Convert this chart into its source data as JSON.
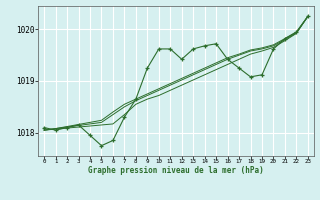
{
  "x": [
    0,
    1,
    2,
    3,
    4,
    5,
    6,
    7,
    8,
    9,
    10,
    11,
    12,
    13,
    14,
    15,
    16,
    17,
    18,
    19,
    20,
    21,
    22,
    23
  ],
  "y_main": [
    1018.1,
    1018.05,
    1018.1,
    1018.15,
    1017.95,
    1017.75,
    1017.85,
    1018.3,
    1018.65,
    1019.25,
    1019.62,
    1019.62,
    1019.42,
    1019.62,
    1019.68,
    1019.72,
    1019.42,
    1019.25,
    1019.08,
    1019.12,
    1019.62,
    1019.82,
    1019.95,
    1020.25
  ],
  "y_trend1": [
    1018.05,
    1018.07,
    1018.09,
    1018.11,
    1018.13,
    1018.15,
    1018.17,
    1018.35,
    1018.55,
    1018.65,
    1018.72,
    1018.82,
    1018.92,
    1019.02,
    1019.12,
    1019.22,
    1019.32,
    1019.42,
    1019.52,
    1019.58,
    1019.65,
    1019.78,
    1019.92,
    1020.25
  ],
  "y_trend2": [
    1018.05,
    1018.08,
    1018.11,
    1018.14,
    1018.17,
    1018.2,
    1018.35,
    1018.5,
    1018.62,
    1018.72,
    1018.82,
    1018.92,
    1019.02,
    1019.12,
    1019.22,
    1019.32,
    1019.42,
    1019.5,
    1019.58,
    1019.62,
    1019.68,
    1019.8,
    1019.93,
    1020.25
  ],
  "y_trend3": [
    1018.05,
    1018.08,
    1018.12,
    1018.16,
    1018.2,
    1018.24,
    1018.4,
    1018.55,
    1018.65,
    1018.75,
    1018.85,
    1018.95,
    1019.05,
    1019.15,
    1019.25,
    1019.35,
    1019.45,
    1019.52,
    1019.6,
    1019.64,
    1019.7,
    1019.82,
    1019.94,
    1020.25
  ],
  "line_color": "#2d6e2d",
  "bg_color": "#d6f0f0",
  "grid_color": "#ffffff",
  "xlabel": "Graphe pression niveau de la mer (hPa)",
  "ylim": [
    1017.55,
    1020.45
  ],
  "xlim": [
    -0.5,
    23.5
  ],
  "yticks": [
    1018,
    1019,
    1020
  ],
  "xticks": [
    0,
    1,
    2,
    3,
    4,
    5,
    6,
    7,
    8,
    9,
    10,
    11,
    12,
    13,
    14,
    15,
    16,
    17,
    18,
    19,
    20,
    21,
    22,
    23
  ]
}
